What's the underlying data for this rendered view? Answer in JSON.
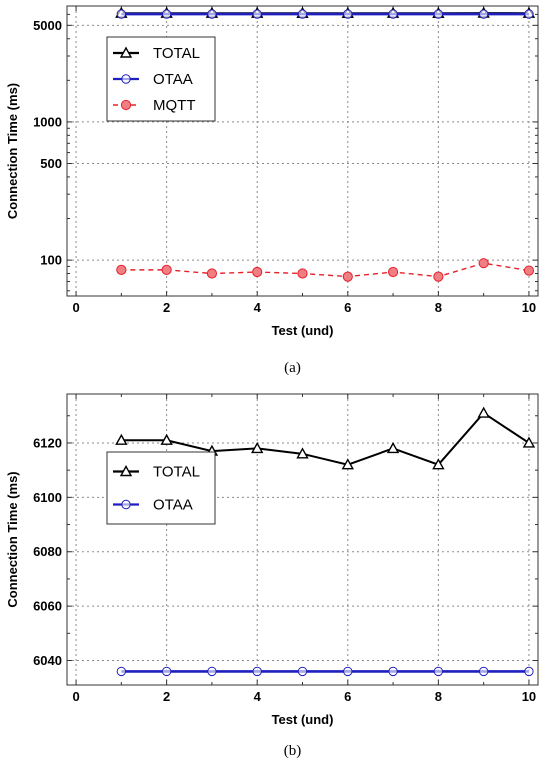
{
  "chart_data": [
    {
      "type": "line",
      "caption": "(a)",
      "xlabel": "Test (und)",
      "ylabel": "Connection Time (ms)",
      "yscale": "log",
      "xlim": [
        -0.2,
        10.2
      ],
      "ylim": [
        55,
        6900
      ],
      "xticks": [
        0,
        2,
        4,
        6,
        8,
        10
      ],
      "yticks": [
        100,
        500,
        1000,
        5000
      ],
      "grid": true,
      "legend_position": "top-left",
      "x": [
        1,
        2,
        3,
        4,
        5,
        6,
        7,
        8,
        9,
        10
      ],
      "series": [
        {
          "name": "TOTAL",
          "color": "#000000",
          "marker": "triangle",
          "dash": "solid",
          "values": [
            6121,
            6121,
            6117,
            6118,
            6116,
            6112,
            6118,
            6112,
            6131,
            6120
          ]
        },
        {
          "name": "OTAA",
          "color": "#1f1fbf",
          "marker": "circle",
          "dash": "solid",
          "values": [
            6036,
            6036,
            6036,
            6036,
            6036,
            6036,
            6036,
            6036,
            6036,
            6036
          ]
        },
        {
          "name": "MQTT",
          "color": "#e8202a",
          "marker": "filled-circle",
          "dash": "dashed",
          "values": [
            85,
            85,
            80,
            82,
            80,
            76,
            82,
            76,
            95,
            84
          ]
        }
      ]
    },
    {
      "type": "line",
      "caption": "(b)",
      "xlabel": "Test (und)",
      "ylabel": "Connection Time (ms)",
      "yscale": "linear",
      "xlim": [
        -0.2,
        10.2
      ],
      "ylim": [
        6031,
        6138
      ],
      "xticks": [
        0,
        2,
        4,
        6,
        8,
        10
      ],
      "yticks": [
        6040,
        6060,
        6080,
        6100,
        6120
      ],
      "grid": true,
      "legend_position": "center-left",
      "x": [
        1,
        2,
        3,
        4,
        5,
        6,
        7,
        8,
        9,
        10
      ],
      "series": [
        {
          "name": "TOTAL",
          "color": "#000000",
          "marker": "triangle",
          "dash": "solid",
          "values": [
            6121,
            6121,
            6117,
            6118,
            6116,
            6112,
            6118,
            6112,
            6131,
            6120
          ]
        },
        {
          "name": "OTAA",
          "color": "#1f1fbf",
          "marker": "circle",
          "dash": "solid",
          "values": [
            6036,
            6036,
            6036,
            6036,
            6036,
            6036,
            6036,
            6036,
            6036,
            6036
          ]
        }
      ]
    }
  ]
}
